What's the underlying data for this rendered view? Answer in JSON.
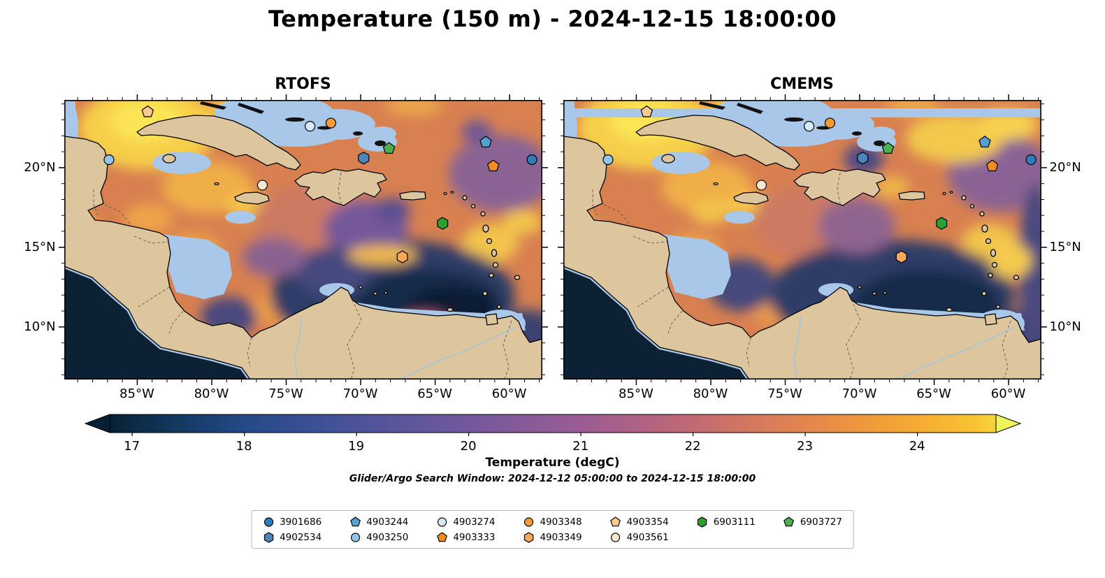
{
  "figure": {
    "title": "Temperature (150 m) - 2024-12-15 18:00:00"
  },
  "chart_data": {
    "type": "heatmap",
    "title": "Temperature (150 m) - 2024-12-15 18:00:00",
    "subtitle": "Glider/Argo Search Window: 2024-12-12 05:00:00 to 2024-12-15 18:00:00",
    "panels": [
      {
        "title": "RTOFS"
      },
      {
        "title": "CMEMS"
      }
    ],
    "extent": {
      "lon_min": -89.9,
      "lon_max": -57.8,
      "lat_min": 6.7,
      "lat_max": 24.25
    },
    "x_ticks": [
      "85°W",
      "80°W",
      "75°W",
      "70°W",
      "65°W",
      "60°W"
    ],
    "x_tick_lons": [
      -85,
      -80,
      -75,
      -70,
      -65,
      -60
    ],
    "y_ticks": [
      "20°N",
      "15°N",
      "10°N"
    ],
    "y_tick_lats": [
      20,
      15,
      10
    ],
    "colorbar": {
      "label": "Temperature (degC)",
      "units": "degC",
      "ticks": [
        17,
        18,
        19,
        20,
        21,
        22,
        23,
        24
      ],
      "vmin": 16.8,
      "vmax": 24.7,
      "arrow_low_color": "#072033",
      "arrow_high_color": "#eef45b",
      "stops": [
        {
          "v": 16.8,
          "c": "#072033"
        },
        {
          "v": 17.0,
          "c": "#0b2a43"
        },
        {
          "v": 17.5,
          "c": "#153c66"
        },
        {
          "v": 18.0,
          "c": "#234a86"
        },
        {
          "v": 18.5,
          "c": "#374f93"
        },
        {
          "v": 19.0,
          "c": "#4b5399"
        },
        {
          "v": 19.5,
          "c": "#5f569c"
        },
        {
          "v": 20.0,
          "c": "#72589c"
        },
        {
          "v": 20.5,
          "c": "#865a99"
        },
        {
          "v": 21.0,
          "c": "#9a5c92"
        },
        {
          "v": 21.5,
          "c": "#ae6184"
        },
        {
          "v": 22.0,
          "c": "#c16a72"
        },
        {
          "v": 22.5,
          "c": "#d37760"
        },
        {
          "v": 23.0,
          "c": "#e2864e"
        },
        {
          "v": 23.5,
          "c": "#ee973e"
        },
        {
          "v": 24.0,
          "c": "#f5ab32"
        },
        {
          "v": 24.5,
          "c": "#f8c233"
        },
        {
          "v": 24.7,
          "c": "#f7d33c"
        }
      ]
    },
    "markers": [
      {
        "id": "3901686",
        "shape": "circle",
        "color": "#2e7ebc",
        "lon": -58.5,
        "lat": 20.5
      },
      {
        "id": "4902534",
        "shape": "hexagon",
        "color": "#4d85b8",
        "lon": -69.8,
        "lat": 20.6
      },
      {
        "id": "4903244",
        "shape": "pentagon",
        "color": "#56a0cf",
        "lon": -61.6,
        "lat": 21.6
      },
      {
        "id": "4903250",
        "shape": "circle",
        "color": "#92c5e8",
        "lon": -86.9,
        "lat": 20.5
      },
      {
        "id": "4903274",
        "shape": "circle",
        "color": "#d6e9f6",
        "lon": -73.4,
        "lat": 22.6
      },
      {
        "id": "4903333",
        "shape": "pentagon",
        "color": "#f08c21",
        "lon": -61.1,
        "lat": 20.1
      },
      {
        "id": "4903348",
        "shape": "circle",
        "color": "#f59b35",
        "lon": -72.0,
        "lat": 22.8
      },
      {
        "id": "4903349",
        "shape": "hexagon",
        "color": "#f6a95c",
        "lon": -67.2,
        "lat": 14.4
      },
      {
        "id": "4903354",
        "shape": "pentagon",
        "color": "#f8c98e",
        "lon": -84.3,
        "lat": 23.5
      },
      {
        "id": "4903561",
        "shape": "circle",
        "color": "#fbe8cf",
        "lon": -76.6,
        "lat": 18.9
      },
      {
        "id": "6903111",
        "shape": "hexagon",
        "color": "#2ca02c",
        "lon": -64.5,
        "lat": 16.5
      },
      {
        "id": "6903727",
        "shape": "pentagon",
        "color": "#4bb04f",
        "lon": -68.1,
        "lat": 21.2
      }
    ],
    "legend": {
      "ncol": 7
    }
  }
}
